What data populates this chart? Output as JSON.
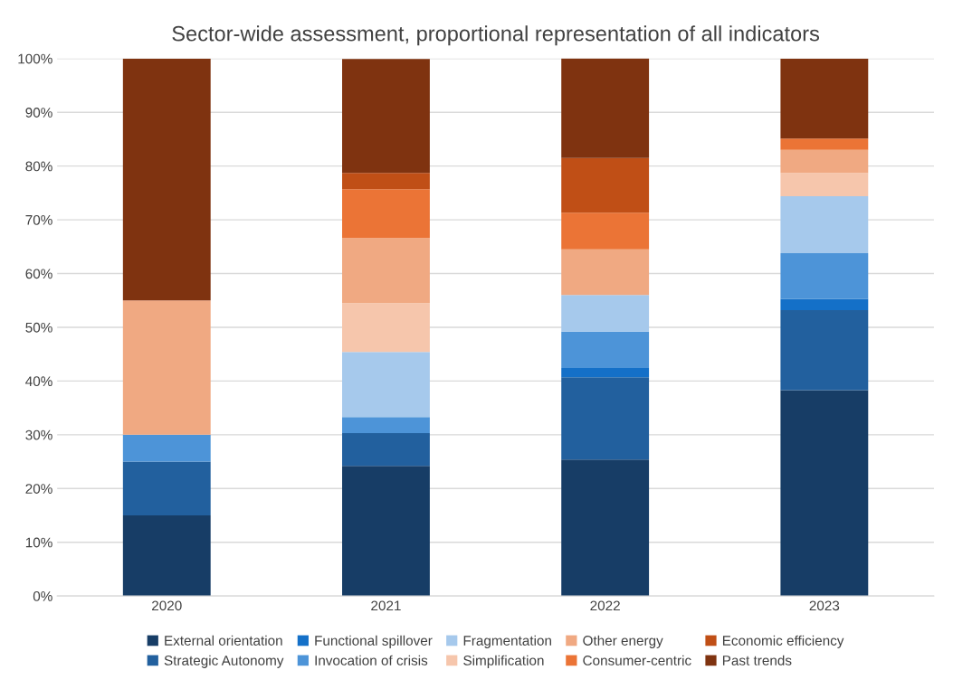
{
  "chart_data": {
    "type": "bar",
    "stacked": true,
    "title": "Sector-wide assessment, proportional representation of all indicators",
    "categories": [
      "2020",
      "2021",
      "2022",
      "2023"
    ],
    "series": [
      {
        "name": "External orientation",
        "color": "#173d66",
        "values": [
          15.0,
          24.2,
          25.4,
          38.3
        ]
      },
      {
        "name": "Strategic Autonomy",
        "color": "#22609e",
        "values": [
          10.0,
          6.1,
          15.3,
          14.9
        ]
      },
      {
        "name": "Functional spillover",
        "color": "#1470c8",
        "values": [
          0,
          0,
          1.7,
          2.1
        ]
      },
      {
        "name": "Invocation of crisis",
        "color": "#4d94d8",
        "values": [
          5.0,
          3.0,
          6.8,
          8.5
        ]
      },
      {
        "name": "Fragmentation",
        "color": "#a6c9ec",
        "values": [
          0,
          12.1,
          6.8,
          10.6
        ]
      },
      {
        "name": "Simplification",
        "color": "#f6c6ac",
        "values": [
          0,
          9.1,
          0,
          4.3
        ]
      },
      {
        "name": "Other energy",
        "color": "#f0a982",
        "values": [
          25.0,
          12.1,
          8.5,
          4.3
        ]
      },
      {
        "name": "Consumer-centric",
        "color": "#eb7436",
        "values": [
          0,
          9.1,
          6.8,
          2.1
        ]
      },
      {
        "name": "Economic efficiency",
        "color": "#c04f16",
        "values": [
          0,
          3.0,
          10.2,
          0
        ]
      },
      {
        "name": "Past trends",
        "color": "#7f3310",
        "values": [
          45.0,
          21.2,
          18.6,
          14.9
        ]
      }
    ],
    "ylim": [
      0,
      100
    ],
    "yticks": [
      {
        "value": 0,
        "label": "0%"
      },
      {
        "value": 10,
        "label": "10%"
      },
      {
        "value": 20,
        "label": "20%"
      },
      {
        "value": 30,
        "label": "30%"
      },
      {
        "value": 40,
        "label": "40%"
      },
      {
        "value": 50,
        "label": "50%"
      },
      {
        "value": 60,
        "label": "60%"
      },
      {
        "value": 70,
        "label": "70%"
      },
      {
        "value": 80,
        "label": "80%"
      },
      {
        "value": 90,
        "label": "90%"
      },
      {
        "value": 100,
        "label": "100%"
      }
    ],
    "grid": "y",
    "legend": "bottom"
  }
}
